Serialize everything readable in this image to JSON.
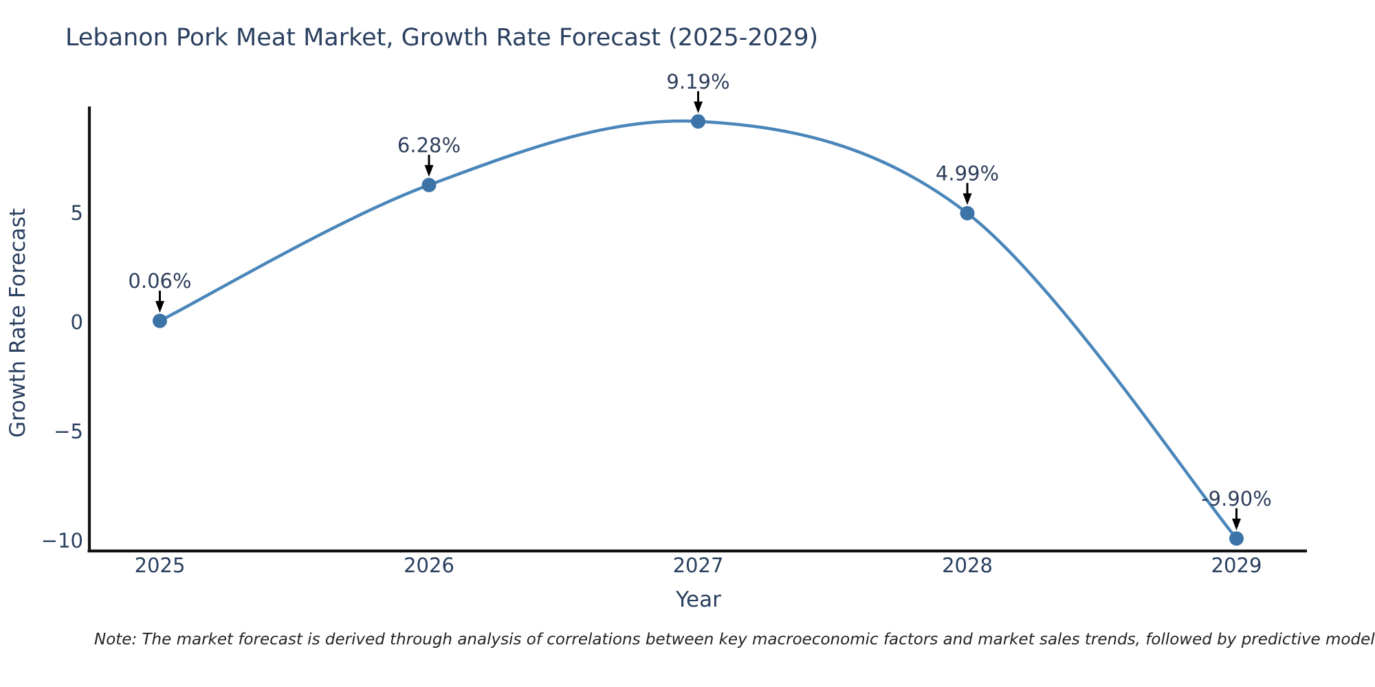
{
  "title": "Lebanon Pork Meat Market, Growth Rate Forecast (2025-2029)",
  "note": "Note: The market forecast is derived through analysis of correlations between key macroeconomic factors and market sales trends, followed by predictive modeling to project future sales.",
  "chart_data": {
    "type": "line",
    "title": "Lebanon Pork Meat Market, Growth Rate Forecast (2025-2029)",
    "xlabel": "Year",
    "ylabel": "Growth Rate Forecast",
    "x": [
      2025,
      2026,
      2027,
      2028,
      2029
    ],
    "series": [
      {
        "name": "Growth Rate Forecast",
        "values": [
          0.06,
          6.28,
          9.19,
          4.99,
          -9.9
        ]
      }
    ],
    "point_labels": [
      "0.06%",
      "6.28%",
      "9.19%",
      "4.99%",
      "-9.90%"
    ],
    "xtick_labels": [
      "2025",
      "2026",
      "2027",
      "2028",
      "2029"
    ],
    "yticks": [
      5,
      0,
      -5,
      -10
    ],
    "ytick_labels": [
      "5",
      "0",
      "−5",
      "−10"
    ],
    "ylim": [
      -10.5,
      9.9
    ],
    "line_shape": "spline",
    "grid": false,
    "legend_position": "none",
    "annotations_have_arrows": true,
    "colors": {
      "line": "#4a86ba",
      "marker": "#3d74a8",
      "axis": "#111111",
      "tick_text": "#2a3f5f",
      "annotation_text": "#2f3f5c",
      "arrow": "#000000",
      "note_text": "#222222",
      "title_text": "#2a3f5f"
    }
  }
}
